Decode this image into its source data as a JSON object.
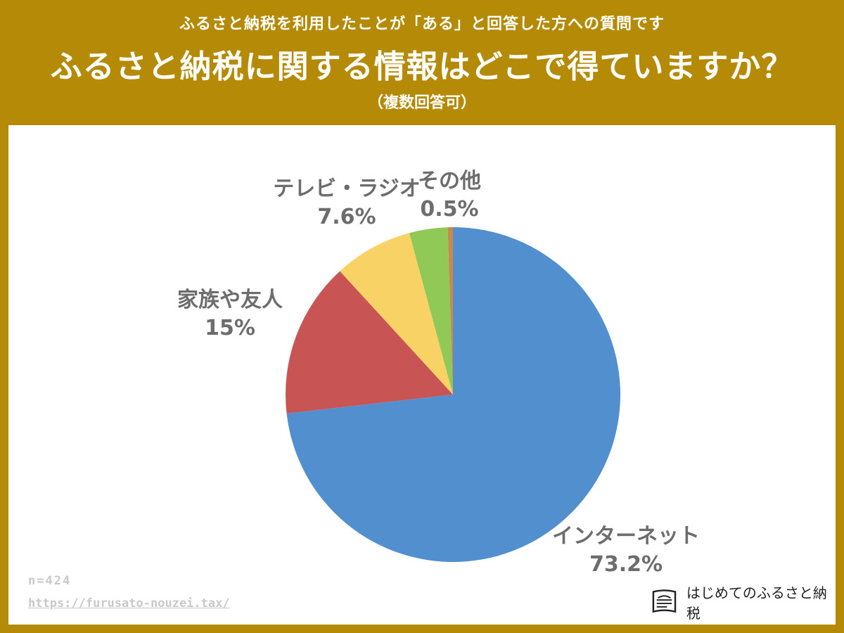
{
  "header": {
    "subtitle": "ふるさと納税を利用したことが「ある」と回答した方への質問です",
    "title": "ふるさと納税に関する情報はどこで得ていますか？",
    "note": "（複数回答可）"
  },
  "footer": {
    "sample": "n=424",
    "url": "https://furusato-nouzei.tax/",
    "brand": "はじめてのふるさと納税",
    "brand_icon": "book-icon"
  },
  "chart_data": {
    "type": "pie",
    "categories": [
      "インターネット",
      "家族や友人",
      "テレビ・ラジオ",
      "",
      "その他"
    ],
    "values": [
      73.2,
      15,
      7.6,
      3.7,
      0.5
    ],
    "value_labels": [
      "73.2%",
      "15%",
      "7.6%",
      "",
      "0.5%"
    ],
    "colors": [
      "#518fce",
      "#c85554",
      "#f9d266",
      "#91c957",
      "#c8894a"
    ],
    "start": "12 o'clock",
    "direction": "clockwise"
  }
}
